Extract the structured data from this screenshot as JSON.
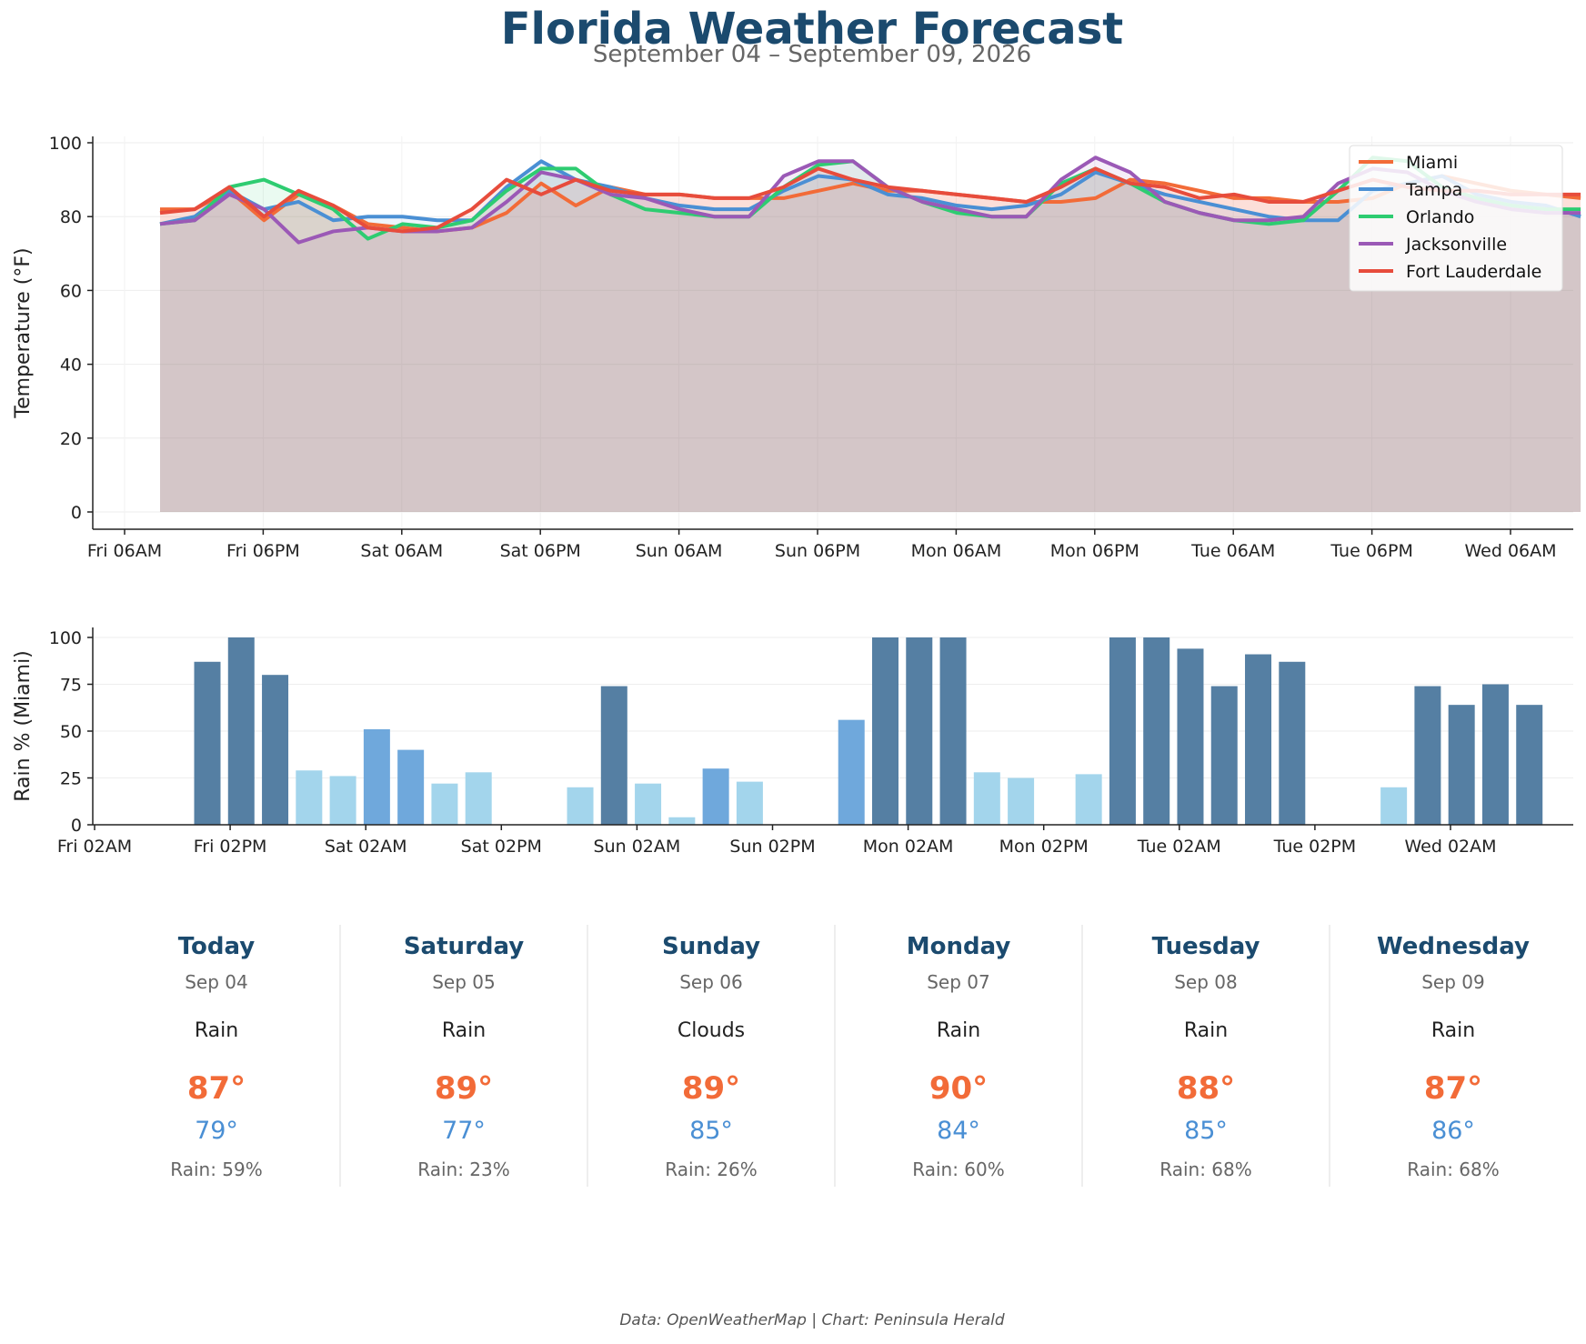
{
  "title": "Florida Weather Forecast",
  "subtitle": "September 04 – September 09, 2026",
  "footer": "Data: OpenWeatherMap | Chart: Peninsula Herald",
  "chart_data": [
    {
      "type": "line",
      "ylabel": "Temperature (°F)",
      "ylim": [
        0,
        100
      ],
      "yticks": [
        0,
        20,
        40,
        60,
        80,
        100
      ],
      "x_tick_labels": [
        "Fri 06AM",
        "Fri 06PM",
        "Sat 06AM",
        "Sat 06PM",
        "Sun 06AM",
        "Sun 06PM",
        "Mon 06AM",
        "Mon 06PM",
        "Tue 06AM",
        "Tue 06PM",
        "Wed 06AM"
      ],
      "x_note": "3-hourly readings; x index 0 = Fri 09AM, each step = 3 hours",
      "grid": true,
      "legend": "top-right",
      "series": [
        {
          "name": "Miami",
          "color": "#f26b38",
          "values": [
            82,
            82,
            87,
            79,
            86,
            83,
            78,
            77,
            76,
            77,
            81,
            89,
            83,
            88,
            86,
            86,
            85,
            85,
            85,
            87,
            89,
            87,
            87,
            86,
            85,
            84,
            84,
            85,
            90,
            89,
            87,
            85,
            85,
            84,
            84,
            85,
            89,
            91,
            89,
            87,
            86,
            85
          ]
        },
        {
          "name": "Tampa",
          "color": "#4a8fd4",
          "values": [
            78,
            80,
            87,
            82,
            84,
            79,
            80,
            80,
            79,
            79,
            88,
            95,
            90,
            88,
            85,
            83,
            82,
            82,
            87,
            91,
            90,
            86,
            85,
            83,
            82,
            83,
            86,
            92,
            89,
            86,
            84,
            82,
            80,
            79,
            79,
            87,
            89,
            91,
            86,
            84,
            83,
            80
          ]
        },
        {
          "name": "Orlando",
          "color": "#2ecc71",
          "values": [
            78,
            79,
            88,
            90,
            86,
            82,
            74,
            78,
            77,
            79,
            87,
            93,
            93,
            86,
            82,
            81,
            80,
            80,
            88,
            94,
            95,
            88,
            84,
            81,
            80,
            80,
            89,
            93,
            89,
            84,
            81,
            79,
            78,
            79,
            87,
            96,
            95,
            88,
            85,
            83,
            82,
            82
          ]
        },
        {
          "name": "Jacksonville",
          "color": "#9b59b6",
          "values": [
            78,
            79,
            86,
            82,
            73,
            76,
            77,
            76,
            76,
            77,
            84,
            92,
            90,
            86,
            85,
            82,
            80,
            80,
            91,
            95,
            95,
            88,
            84,
            82,
            80,
            80,
            90,
            96,
            92,
            84,
            81,
            79,
            79,
            80,
            89,
            93,
            92,
            87,
            84,
            82,
            81,
            81
          ]
        },
        {
          "name": "Fort Lauderdale",
          "color": "#e74c3c",
          "values": [
            81,
            82,
            88,
            80,
            87,
            83,
            77,
            76,
            77,
            82,
            90,
            86,
            90,
            87,
            86,
            86,
            85,
            85,
            88,
            93,
            90,
            88,
            87,
            86,
            85,
            84,
            88,
            93,
            89,
            88,
            85,
            86,
            84,
            84,
            87,
            90,
            88,
            87,
            87,
            86,
            86,
            86
          ]
        }
      ]
    },
    {
      "type": "bar",
      "ylabel": "Rain % (Miami)",
      "ylim": [
        0,
        100
      ],
      "yticks": [
        0,
        25,
        50,
        75,
        100
      ],
      "x_tick_labels": [
        "Fri 02AM",
        "Fri 02PM",
        "Sat 02AM",
        "Sat 02PM",
        "Sun 02AM",
        "Sun 02PM",
        "Mon 02AM",
        "Mon 02PM",
        "Tue 02AM",
        "Tue 02PM",
        "Wed 02AM"
      ],
      "x_note": "3-hourly bars; index 0 = Fri 11AM, each step = 3 hours",
      "colors": {
        "high": "#557fa3",
        "medium": "#6fa8dc",
        "low": "#a3d5ec"
      },
      "values": [
        87,
        100,
        80,
        29,
        26,
        51,
        40,
        22,
        28,
        0,
        0,
        20,
        74,
        22,
        4,
        30,
        23,
        0,
        0,
        56,
        100,
        100,
        100,
        28,
        25,
        0,
        27,
        100,
        100,
        94,
        74,
        91,
        87,
        0,
        0,
        20,
        74,
        64,
        75,
        64
      ]
    }
  ],
  "forecast": [
    {
      "day": "Today",
      "date": "Sep 04",
      "condition": "Rain",
      "high": "87°",
      "low": "79°",
      "rain": "Rain: 59%"
    },
    {
      "day": "Saturday",
      "date": "Sep 05",
      "condition": "Rain",
      "high": "89°",
      "low": "77°",
      "rain": "Rain: 23%"
    },
    {
      "day": "Sunday",
      "date": "Sep 06",
      "condition": "Clouds",
      "high": "89°",
      "low": "85°",
      "rain": "Rain: 26%"
    },
    {
      "day": "Monday",
      "date": "Sep 07",
      "condition": "Rain",
      "high": "90°",
      "low": "84°",
      "rain": "Rain: 60%"
    },
    {
      "day": "Tuesday",
      "date": "Sep 08",
      "condition": "Rain",
      "high": "88°",
      "low": "85°",
      "rain": "Rain: 68%"
    },
    {
      "day": "Wednesday",
      "date": "Sep 09",
      "condition": "Rain",
      "high": "87°",
      "low": "86°",
      "rain": "Rain: 68%"
    }
  ]
}
